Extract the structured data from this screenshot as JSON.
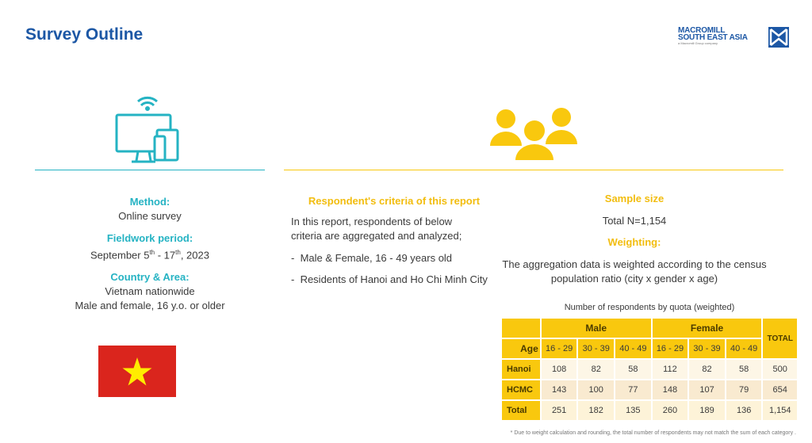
{
  "title": "Survey Outline",
  "logo": {
    "line1": "MACROMILL",
    "line2": "SOUTH EAST ASIA",
    "sub": "a Macromill Group company"
  },
  "colors": {
    "title": "#1c57a5",
    "teal": "#25b3c3",
    "yellow": "#f9c80e"
  },
  "icons": [
    "online-device-icon",
    "people-group-icon",
    "vietnam-flag"
  ],
  "left": {
    "method_label": "Method:",
    "method_value": "Online survey",
    "fieldwork_label": "Fieldwork period:",
    "fieldwork_a": "September 5",
    "fieldwork_sup1": "th",
    "fieldwork_b": " - 17",
    "fieldwork_sup2": "th",
    "fieldwork_c": ", 2023",
    "country_label": "Country & Area:",
    "country_value1": "Vietnam nationwide",
    "country_value2": "Male and female, 16 y.o. or older"
  },
  "middle": {
    "heading": "Respondent's criteria of this report",
    "intro": "In this report, respondents of below criteria are aggregated and analyzed;",
    "bullets": [
      "Male & Female, 16 - 49 years old",
      "Residents of Hanoi and Ho Chi Minh City"
    ]
  },
  "right": {
    "sample_label": "Sample size",
    "sample_value": "Total N=1,154",
    "weighting_label": "Weighting:",
    "weighting_text": "The aggregation data is weighted according to the census population ratio (city x gender x age)"
  },
  "table": {
    "caption": "Number of respondents by quota (weighted)",
    "male": "Male",
    "female": "Female",
    "total_header": "TOTAL",
    "age_label": "Age",
    "ages": [
      "16 - 29",
      "30 - 39",
      "40 - 49",
      "16 - 29",
      "30 - 39",
      "40 - 49"
    ],
    "rows": [
      {
        "label": "Hanoi",
        "values": [
          "108",
          "82",
          "58",
          "112",
          "82",
          "58",
          "500"
        ]
      },
      {
        "label": "HCMC",
        "values": [
          "143",
          "100",
          "77",
          "148",
          "107",
          "79",
          "654"
        ]
      },
      {
        "label": "Total",
        "values": [
          "251",
          "182",
          "135",
          "260",
          "189",
          "136",
          "1,154"
        ]
      }
    ]
  },
  "footnote": "* Due to weight calculation and rounding, the total number of respondents may not match the sum of each category ."
}
